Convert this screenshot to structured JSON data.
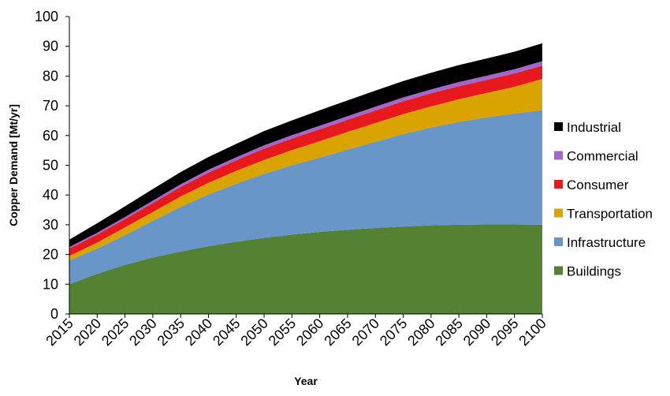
{
  "chart_data": {
    "type": "area",
    "stacked": true,
    "title": "",
    "xlabel": "Year",
    "ylabel": "Copper Demand [Mt/yr]",
    "ylim": [
      0,
      100
    ],
    "yticks": [
      0,
      10,
      20,
      30,
      40,
      50,
      60,
      70,
      80,
      90,
      100
    ],
    "grid": false,
    "legend_position": "right",
    "x": [
      2015,
      2020,
      2025,
      2030,
      2035,
      2040,
      2045,
      2050,
      2055,
      2060,
      2065,
      2070,
      2075,
      2080,
      2085,
      2090,
      2095,
      2100
    ],
    "series": [
      {
        "name": "Buildings",
        "color": "#548235",
        "values": [
          10,
          13.5,
          16.5,
          19,
          21,
          22.8,
          24.3,
          25.6,
          26.7,
          27.6,
          28.3,
          28.9,
          29.4,
          29.8,
          30.0,
          30.1,
          30.1,
          30.0
        ]
      },
      {
        "name": "Infrastructure",
        "color": "#6996C9",
        "values": [
          8,
          8.5,
          10.0,
          12.3,
          15.0,
          17.4,
          19.5,
          21.5,
          23.3,
          25.0,
          27.0,
          29.0,
          31.1,
          32.9,
          34.6,
          36.0,
          37.3,
          38.5
        ]
      },
      {
        "name": "Transportation",
        "color": "#D9A300",
        "values": [
          1.5,
          2.0,
          2.6,
          3.0,
          3.5,
          3.9,
          4.3,
          4.7,
          5.1,
          5.5,
          5.9,
          6.3,
          6.7,
          7.1,
          7.6,
          8.2,
          9.0,
          10.5
        ]
      },
      {
        "name": "Consumer",
        "color": "#E8191C",
        "values": [
          2.5,
          2.7,
          2.8,
          3.0,
          3.2,
          3.4,
          3.6,
          3.8,
          3.9,
          4.0,
          4.1,
          4.2,
          4.3,
          4.4,
          4.4,
          4.4,
          4.5,
          4.5
        ]
      },
      {
        "name": "Commercial",
        "color": "#A566CC",
        "values": [
          0.5,
          0.6,
          0.7,
          0.8,
          0.9,
          1.0,
          1.0,
          1.1,
          1.1,
          1.2,
          1.2,
          1.3,
          1.3,
          1.3,
          1.4,
          1.4,
          1.4,
          1.5
        ]
      },
      {
        "name": "Industrial",
        "color": "#000000",
        "values": [
          2.5,
          3.2,
          3.6,
          3.9,
          4.1,
          4.3,
          4.5,
          4.8,
          5.0,
          5.2,
          5.3,
          5.4,
          5.5,
          5.6,
          5.7,
          5.8,
          5.9,
          6.0
        ]
      }
    ]
  }
}
